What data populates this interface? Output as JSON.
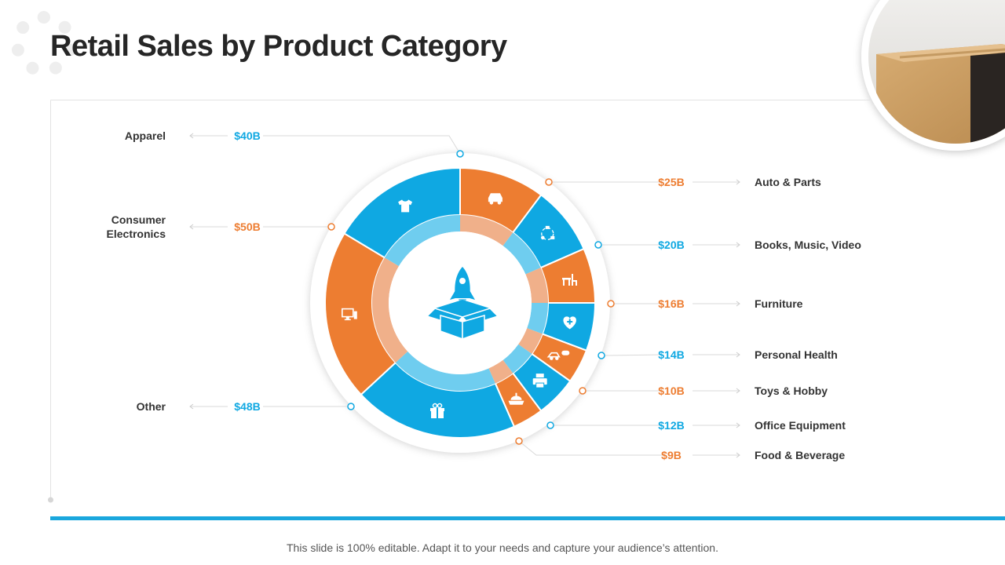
{
  "title": "Retail Sales by Product Category",
  "footer": "This slide is 100% editable. Adapt it to your needs and capture your audience’s attention.",
  "colors": {
    "orange": "#ed7d31",
    "blue": "#0fa8e2",
    "light_orange": "#f0b08a",
    "light_blue": "#6fcdef",
    "text": "#333333"
  },
  "center_icon": "rocket-box-icon",
  "chart_data": {
    "type": "pie",
    "title": "Retail Sales by Product Category",
    "unit": "$B",
    "slices": [
      {
        "label": "Auto & Parts",
        "value_label": "$25B",
        "value": 25,
        "color": "orange",
        "icon": "car-icon"
      },
      {
        "label": "Books, Music, Video",
        "value_label": "$20B",
        "value": 20,
        "color": "blue",
        "icon": "media-icon"
      },
      {
        "label": "Furniture",
        "value_label": "$16B",
        "value": 16,
        "color": "orange",
        "icon": "furniture-icon"
      },
      {
        "label": "Personal Health",
        "value_label": "$14B",
        "value": 14,
        "color": "blue",
        "icon": "health-icon"
      },
      {
        "label": "Toys & Hobby",
        "value_label": "$10B",
        "value": 10,
        "color": "orange",
        "icon": "toy-car-icon"
      },
      {
        "label": "Office Equipment",
        "value_label": "$12B",
        "value": 12,
        "color": "blue",
        "icon": "printer-icon"
      },
      {
        "label": "Food & Beverage",
        "value_label": "$9B",
        "value": 9,
        "color": "orange",
        "icon": "food-icon"
      },
      {
        "label": "Other",
        "value_label": "$48B",
        "value": 48,
        "color": "blue",
        "icon": "gift-icon"
      },
      {
        "label": "Consumer Electronics",
        "value_label": "$50B",
        "value": 50,
        "color": "orange",
        "icon": "computer-icon"
      },
      {
        "label": "Apparel",
        "value_label": "$40B",
        "value": 40,
        "color": "blue",
        "icon": "shirt-icon"
      }
    ]
  }
}
